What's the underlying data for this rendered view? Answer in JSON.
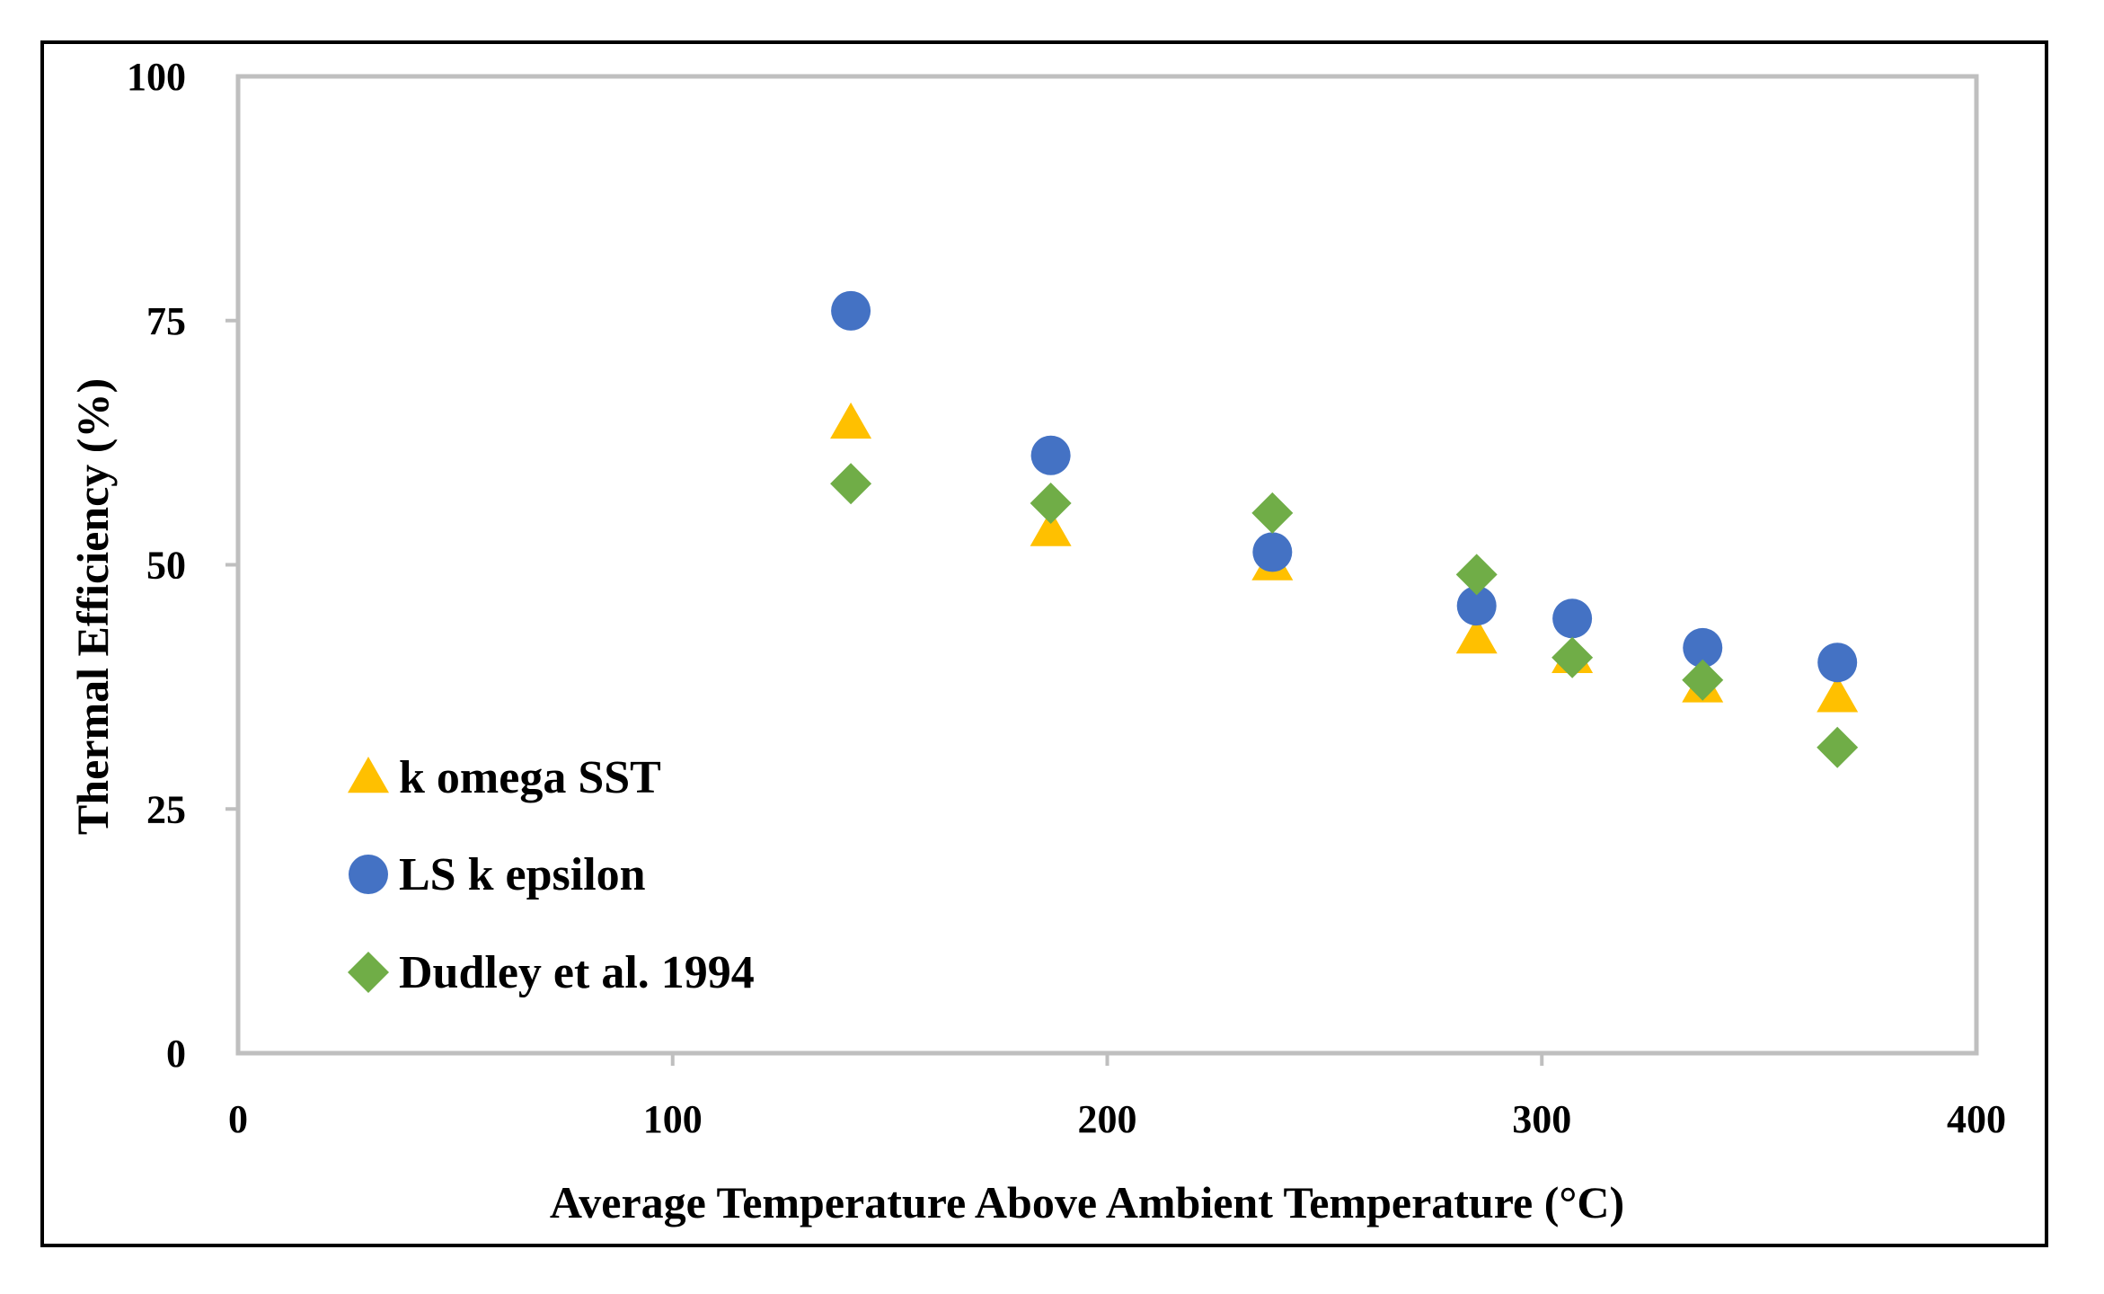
{
  "chart_data": {
    "type": "scatter",
    "title": "",
    "xlabel": "Average Temperature Above Ambient Temperature (°C)",
    "ylabel": "Thermal Efficiency (%)",
    "xlim": [
      0,
      400
    ],
    "ylim": [
      0,
      100
    ],
    "xticks": [
      0,
      100,
      200,
      300,
      400
    ],
    "yticks": [
      0,
      25,
      50,
      75,
      100
    ],
    "xtick_labels": [
      "0",
      "100",
      "200",
      "300",
      "400"
    ],
    "ytick_labels": [
      "0",
      "25",
      "50",
      "75",
      "100"
    ],
    "grid": false,
    "legend_position": "lower-left",
    "series": [
      {
        "name": "k omega SST",
        "marker": "triangle",
        "color": "#FFC000",
        "x": [
          141,
          187,
          238,
          285,
          307,
          337,
          368
        ],
        "y": [
          64.5,
          53.5,
          50.0,
          42.5,
          40.5,
          37.5,
          36.5
        ]
      },
      {
        "name": "LS k epsilon",
        "marker": "circle",
        "color": "#4472C4",
        "x": [
          141,
          187,
          238,
          285,
          307,
          337,
          368
        ],
        "y": [
          76.0,
          61.2,
          51.3,
          45.8,
          44.5,
          41.5,
          40.0
        ]
      },
      {
        "name": "Dudley et al. 1994",
        "marker": "diamond",
        "color": "#70AD47",
        "x": [
          141,
          187,
          238,
          285,
          307,
          337,
          368
        ],
        "y": [
          58.3,
          56.3,
          55.3,
          49.0,
          40.5,
          38.2,
          31.3
        ]
      }
    ]
  }
}
